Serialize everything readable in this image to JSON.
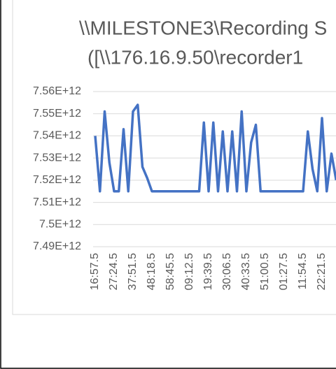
{
  "chart_data": {
    "type": "line",
    "title": [
      "\\\\MILESTONE3\\Recording S",
      "([\\\\176.16.9.50\\recorder1"
    ],
    "categories": [
      "16:57.5",
      null,
      null,
      null,
      "27:24.5",
      null,
      null,
      null,
      "37:51.5",
      null,
      null,
      null,
      "48:18.5",
      null,
      null,
      null,
      "58:45.5",
      null,
      null,
      null,
      "09:12.5",
      null,
      null,
      null,
      "19:39.5",
      null,
      null,
      null,
      "30:06.5",
      null,
      null,
      null,
      "40:33.5",
      null,
      null,
      null,
      "51:00.5",
      null,
      null,
      null,
      "01:27.5",
      null,
      null,
      null,
      "11:54.5",
      null,
      null,
      null,
      "22:21.5",
      null,
      null,
      null
    ],
    "series": [
      {
        "color": "#4472c4",
        "values": [
          7540000000000,
          7515000000000,
          7551000000000,
          7528000000000,
          7515000000000,
          7515000000000,
          7543000000000,
          7515000000000,
          7551000000000,
          7554000000000,
          7526000000000,
          7521000000000,
          7515000000000,
          7515000000000,
          7515000000000,
          7515000000000,
          7515000000000,
          7515000000000,
          7515000000000,
          7515000000000,
          7515000000000,
          7515000000000,
          7515000000000,
          7546000000000,
          7515000000000,
          7546000000000,
          7515000000000,
          7542000000000,
          7515000000000,
          7542000000000,
          7515000000000,
          7551000000000,
          7515000000000,
          7537000000000,
          7545000000000,
          7515000000000,
          7515000000000,
          7515000000000,
          7515000000000,
          7515000000000,
          7515000000000,
          7515000000000,
          7515000000000,
          7515000000000,
          7515000000000,
          7542000000000,
          7525000000000,
          7515000000000,
          7548000000000,
          7515000000000,
          7532000000000,
          7520000000000
        ]
      }
    ],
    "ylim": [
      7490000000000,
      7560000000000
    ],
    "yticks": [
      {
        "value": 7490000000000,
        "label": "7.49E+12"
      },
      {
        "value": 7500000000000,
        "label": "7.5E+12"
      },
      {
        "value": 7510000000000,
        "label": "7.51E+12"
      },
      {
        "value": 7520000000000,
        "label": "7.52E+12"
      },
      {
        "value": 7530000000000,
        "label": "7.53E+12"
      },
      {
        "value": 7540000000000,
        "label": "7.54E+12"
      },
      {
        "value": 7550000000000,
        "label": "7.55E+12"
      },
      {
        "value": 7560000000000,
        "label": "7.56E+12"
      }
    ],
    "grid": true
  }
}
